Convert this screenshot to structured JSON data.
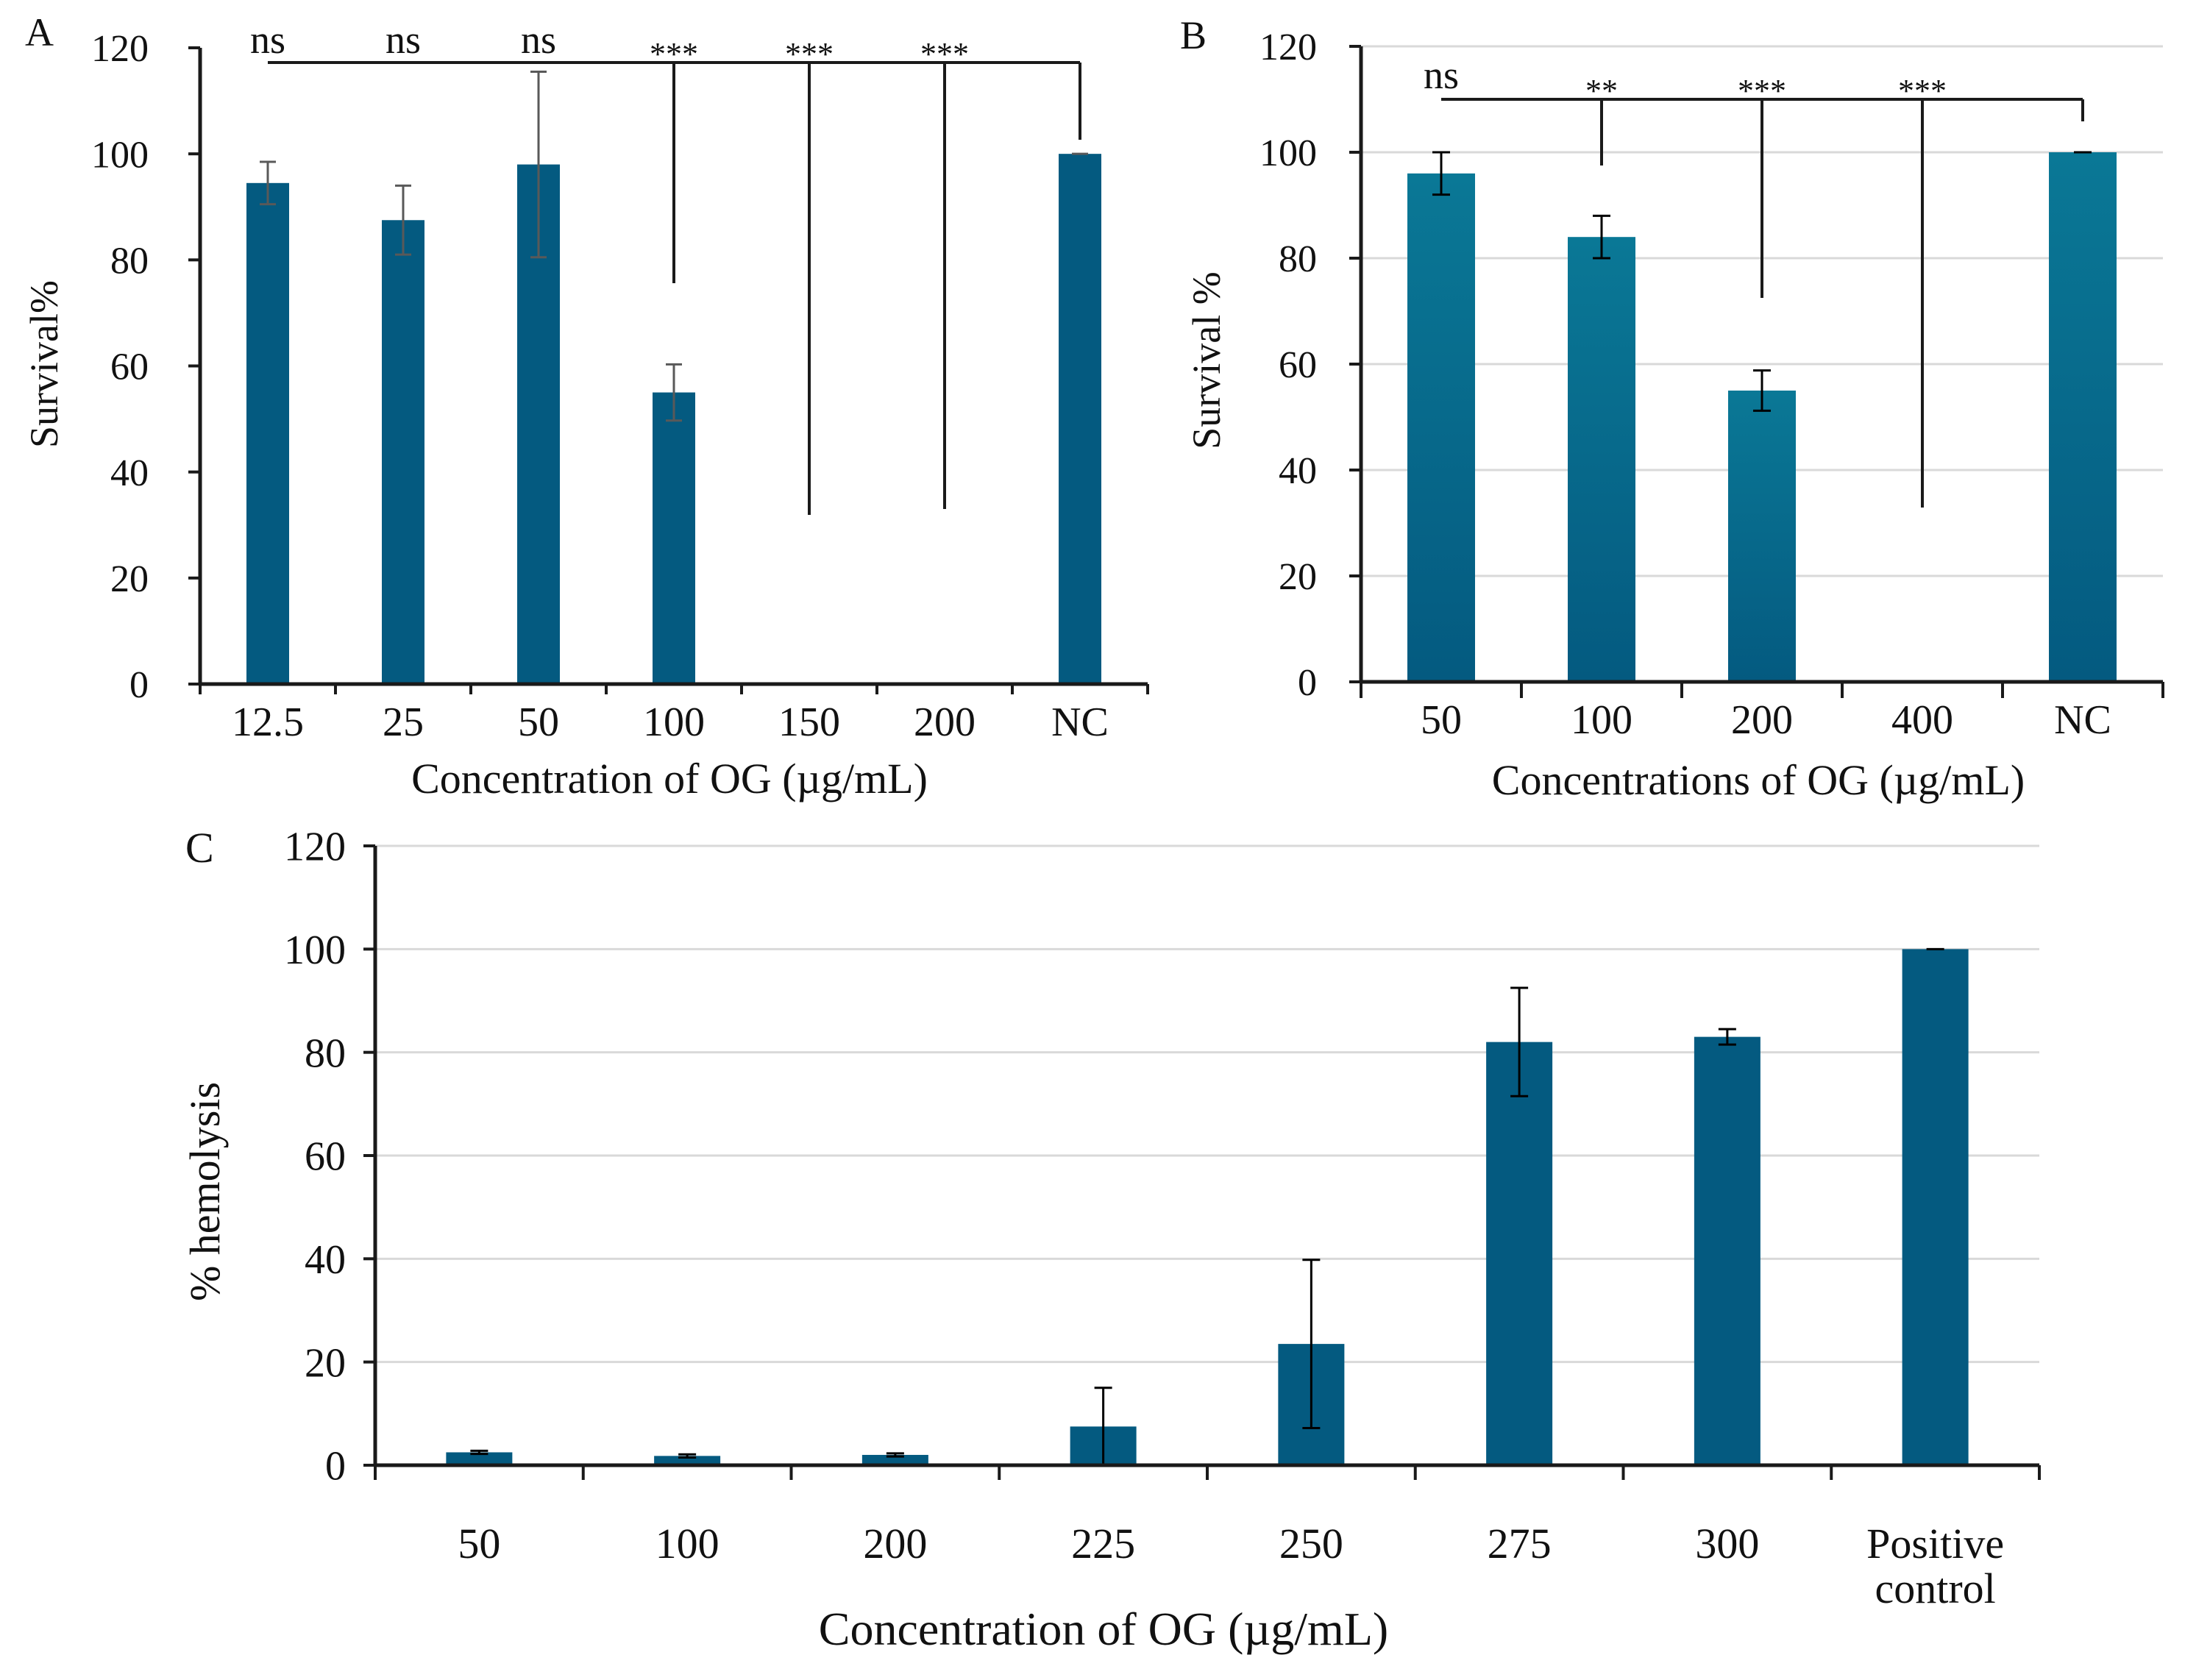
{
  "colors": {
    "bar": "#045a80",
    "bar_b_top": "#0a7896",
    "axis": "#1a1a1a",
    "grid": "#d9d9d9",
    "tick_text_a": "#333333",
    "errorbar_a": "#595959",
    "errorbar": "#000000"
  },
  "chart_data": [
    {
      "panel": "A",
      "type": "bar",
      "categories": [
        "12.5",
        "25",
        "50",
        "100",
        "150",
        "200",
        "NC"
      ],
      "values": [
        94.5,
        87.5,
        98,
        55,
        0,
        0,
        100
      ],
      "errors": [
        4,
        6.5,
        17.5,
        5.3,
        0,
        0,
        0
      ],
      "xlabel": "Concentration of OG (µg/mL)",
      "ylabel": "Survival%",
      "ylim": [
        0,
        120
      ],
      "yticks": [
        0,
        20,
        40,
        60,
        80,
        100,
        120
      ],
      "grid": false,
      "significance": {
        "reference": "NC",
        "labels": [
          "ns",
          "ns",
          "ns",
          "***",
          "***",
          "***"
        ]
      }
    },
    {
      "panel": "B",
      "type": "bar",
      "categories": [
        "50",
        "100",
        "200",
        "400",
        "NC"
      ],
      "values": [
        96,
        84,
        55,
        0.3,
        100
      ],
      "errors": [
        4,
        4,
        3.8,
        0,
        0
      ],
      "xlabel": "Concentrations of OG (µg/mL)",
      "ylabel": "Survival %",
      "ylim": [
        0,
        120
      ],
      "yticks": [
        0,
        20,
        40,
        60,
        80,
        100,
        120
      ],
      "grid": true,
      "significance": {
        "reference": "NC",
        "labels": [
          "ns",
          "**",
          "***",
          "***"
        ]
      }
    },
    {
      "panel": "C",
      "type": "bar",
      "categories": [
        "50",
        "100",
        "200",
        "225",
        "250",
        "275",
        "300",
        "Positive control"
      ],
      "values": [
        2.5,
        1.8,
        2,
        7.5,
        23.5,
        82,
        83,
        100
      ],
      "errors": [
        0.3,
        0.3,
        0.3,
        7.5,
        16.3,
        10.5,
        1.5,
        0
      ],
      "xlabel": "Concentration of OG (µg/mL)",
      "ylabel": "% hemolysis",
      "ylim": [
        0,
        120
      ],
      "yticks": [
        0,
        20,
        40,
        60,
        80,
        100,
        120
      ],
      "grid": true
    }
  ]
}
